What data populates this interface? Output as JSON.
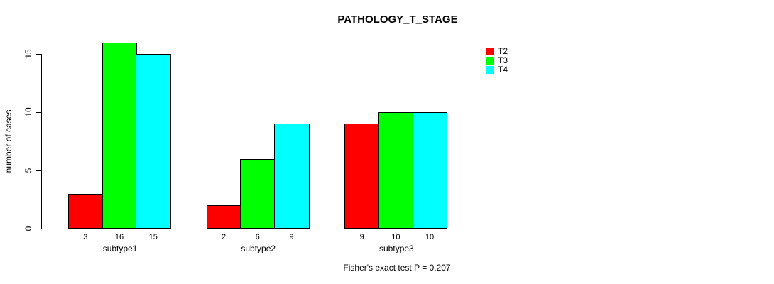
{
  "title": "PATHOLOGY_T_STAGE",
  "annotation": "Fisher's exact test P = 0.207",
  "chart_data": {
    "type": "bar",
    "title": "PATHOLOGY_T_STAGE",
    "xlabel": "",
    "ylabel": "number of cases",
    "categories": [
      "subtype1",
      "subtype2",
      "subtype3"
    ],
    "series": [
      {
        "name": "T2",
        "color": "#ff0000",
        "values": [
          3,
          2,
          9
        ]
      },
      {
        "name": "T3",
        "color": "#00ff00",
        "values": [
          16,
          6,
          10
        ]
      },
      {
        "name": "T4",
        "color": "#00ffff",
        "values": [
          15,
          9,
          10
        ]
      }
    ],
    "bar_value_labels": [
      [
        "3",
        "16",
        "15"
      ],
      [
        "2",
        "6",
        "9"
      ],
      [
        "9",
        "10",
        "10"
      ]
    ],
    "yticks": [
      0,
      5,
      10,
      15
    ],
    "ylim": [
      0,
      16
    ],
    "grid": false,
    "legend_position": "top-right",
    "legend_entries": [
      "T2",
      "T3",
      "T4"
    ],
    "annotation": "Fisher's exact test P = 0.207",
    "colors": {
      "background": "#ffffff",
      "text": "#000000",
      "axis": "#000000",
      "bar_border": "#000000"
    }
  }
}
